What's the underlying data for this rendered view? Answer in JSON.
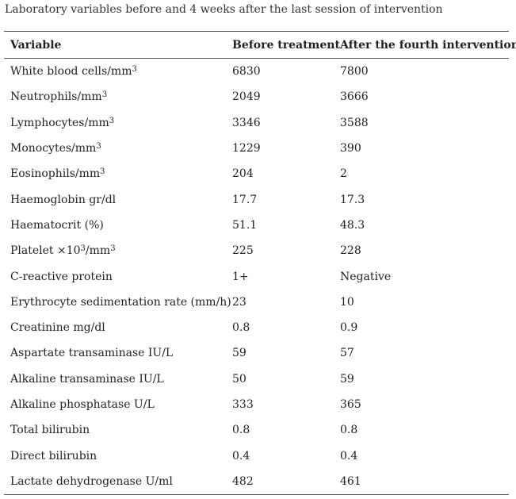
{
  "caption": "Laboratory variables before and 4 weeks after the last session of intervention",
  "table": {
    "headers": [
      "Variable",
      "Before treatment",
      "After the fourth intervention"
    ],
    "rows": [
      {
        "variable": "White blood cells/mm",
        "sup": "3",
        "before": "6830",
        "after": "7800"
      },
      {
        "variable": "Neutrophils/mm",
        "sup": "3",
        "before": "2049",
        "after": "3666"
      },
      {
        "variable": "Lymphocytes/mm",
        "sup": "3",
        "before": "3346",
        "after": "3588"
      },
      {
        "variable": "Monocytes/mm",
        "sup": "3",
        "before": "1229",
        "after": "390"
      },
      {
        "variable": "Eosinophils/mm",
        "sup": "3",
        "before": "204",
        "after": "2"
      },
      {
        "variable": "Haemoglobin gr/dl",
        "before": "17.7",
        "after": "17.3"
      },
      {
        "variable": "Haematocrit (%)",
        "before": "51.1",
        "after": "48.3"
      },
      {
        "variable": "Platelet ×10",
        "sup": "3",
        "variable_tail": "/mm",
        "sup2": "3",
        "before": "225",
        "after": "228"
      },
      {
        "variable": "C-reactive protein",
        "before": "1+",
        "after": "Negative"
      },
      {
        "variable": "Erythrocyte sedimentation rate (mm/h)",
        "before": "23",
        "after": "10"
      },
      {
        "variable": "Creatinine mg/dl",
        "before": "0.8",
        "after": "0.9"
      },
      {
        "variable": "Aspartate transaminase IU/L",
        "before": "59",
        "after": "57"
      },
      {
        "variable": "Alkaline transaminase IU/L",
        "before": "50",
        "after": "59"
      },
      {
        "variable": "Alkaline phosphatase U/L",
        "before": "333",
        "after": "365"
      },
      {
        "variable": "Total bilirubin",
        "before": "0.8",
        "after": "0.8"
      },
      {
        "variable": "Direct bilirubin",
        "before": "0.4",
        "after": "0.4"
      },
      {
        "variable": "Lactate dehydrogenase U/ml",
        "before": "482",
        "after": "461"
      }
    ]
  }
}
